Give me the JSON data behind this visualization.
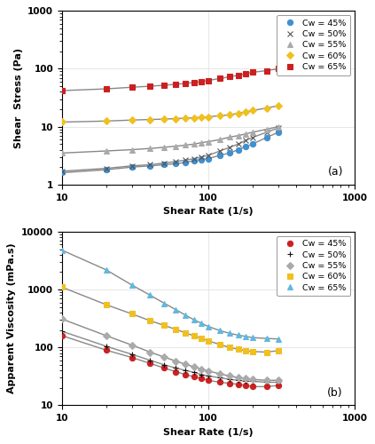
{
  "title_a": "(a)",
  "title_b": "(b)",
  "xlabel": "Shear Rate (1/s)",
  "ylabel_a": "Shear  Stress (Pa)",
  "ylabel_b": "Apparent Viscosity (mPa.s)",
  "xlim": [
    10,
    1000
  ],
  "ylim_a": [
    1,
    1000
  ],
  "ylim_b": [
    10,
    10000
  ],
  "legend_labels": [
    "Cw = 45%",
    "Cw = 50%",
    "Cw = 55%",
    "Cw = 60%",
    "Cw = 65%"
  ],
  "line_color": "#888888",
  "marker_colors_a": [
    "#4090d0",
    "#555555",
    "#aaaaaa",
    "#f0c020",
    "#cc2020"
  ],
  "marker_colors_b": [
    "#cc2020",
    "#111111",
    "#aaaaaa",
    "#f0c020",
    "#60b8e0"
  ],
  "markers_a": [
    "o",
    "x",
    "^",
    "D",
    "s"
  ],
  "markers_b": [
    "o",
    "+",
    "D",
    "s",
    "^"
  ],
  "plot_a": {
    "Cw45": {
      "x": [
        10,
        20,
        30,
        40,
        50,
        60,
        70,
        80,
        90,
        100,
        120,
        140,
        160,
        180,
        200,
        250,
        300
      ],
      "y": [
        1.6,
        1.8,
        2.0,
        2.1,
        2.2,
        2.3,
        2.4,
        2.6,
        2.7,
        2.8,
        3.2,
        3.5,
        4.0,
        4.5,
        5.0,
        6.5,
        8.0
      ]
    },
    "Cw50": {
      "x": [
        10,
        20,
        30,
        40,
        50,
        60,
        70,
        80,
        90,
        100,
        120,
        140,
        160,
        180,
        200,
        250,
        300
      ],
      "y": [
        1.7,
        1.9,
        2.1,
        2.2,
        2.35,
        2.5,
        2.65,
        2.8,
        3.0,
        3.2,
        3.8,
        4.4,
        5.0,
        5.8,
        6.5,
        8.0,
        9.5
      ]
    },
    "Cw55": {
      "x": [
        10,
        20,
        30,
        40,
        50,
        60,
        70,
        80,
        90,
        100,
        120,
        140,
        160,
        180,
        200,
        250,
        300
      ],
      "y": [
        3.5,
        3.8,
        4.0,
        4.2,
        4.4,
        4.6,
        4.8,
        5.0,
        5.3,
        5.5,
        6.0,
        6.6,
        7.0,
        7.5,
        8.0,
        9.0,
        10.0
      ]
    },
    "Cw60": {
      "x": [
        10,
        20,
        30,
        40,
        50,
        60,
        70,
        80,
        90,
        100,
        120,
        140,
        160,
        180,
        200,
        250,
        300
      ],
      "y": [
        12.0,
        12.5,
        13.0,
        13.3,
        13.5,
        13.8,
        14.0,
        14.3,
        14.5,
        14.8,
        15.5,
        16.0,
        17.0,
        18.0,
        19.0,
        21.0,
        23.0
      ]
    },
    "Cw65": {
      "x": [
        10,
        20,
        30,
        40,
        50,
        60,
        70,
        80,
        90,
        100,
        120,
        140,
        160,
        180,
        200,
        250,
        300
      ],
      "y": [
        42.0,
        45.0,
        48.0,
        50.0,
        52.0,
        54.0,
        56.0,
        58.0,
        60.0,
        63.0,
        68.0,
        73.0,
        77.0,
        82.0,
        87.0,
        93.0,
        100.0
      ]
    }
  },
  "plot_b": {
    "Cw45": {
      "x": [
        10,
        20,
        30,
        40,
        50,
        60,
        70,
        80,
        90,
        100,
        120,
        140,
        160,
        180,
        200,
        250,
        300
      ],
      "y": [
        160,
        90,
        67,
        53,
        44,
        38,
        34,
        31,
        29,
        27,
        25,
        24,
        23,
        22,
        21,
        21,
        22
      ]
    },
    "Cw50": {
      "x": [
        10,
        20,
        30,
        40,
        50,
        60,
        70,
        80,
        90,
        100,
        120,
        140,
        160,
        180,
        200,
        250,
        300
      ],
      "y": [
        190,
        105,
        76,
        60,
        50,
        44,
        40,
        37,
        34,
        32,
        30,
        28,
        27,
        26,
        26,
        25,
        25
      ]
    },
    "Cw55": {
      "x": [
        10,
        20,
        30,
        40,
        50,
        60,
        70,
        80,
        90,
        100,
        120,
        140,
        160,
        180,
        200,
        250,
        300
      ],
      "y": [
        310,
        160,
        110,
        83,
        68,
        58,
        51,
        46,
        42,
        39,
        35,
        32,
        30,
        29,
        28,
        27,
        27
      ]
    },
    "Cw60": {
      "x": [
        10,
        20,
        30,
        40,
        50,
        60,
        70,
        80,
        90,
        100,
        120,
        140,
        160,
        180,
        200,
        250,
        300
      ],
      "y": [
        1100,
        550,
        380,
        290,
        240,
        205,
        178,
        158,
        143,
        130,
        112,
        100,
        93,
        88,
        85,
        83,
        88
      ]
    },
    "Cw65": {
      "x": [
        10,
        20,
        30,
        40,
        50,
        60,
        70,
        80,
        90,
        100,
        120,
        140,
        160,
        180,
        200,
        250,
        300
      ],
      "y": [
        4800,
        2200,
        1200,
        800,
        580,
        450,
        360,
        300,
        260,
        230,
        195,
        175,
        163,
        155,
        148,
        143,
        140
      ]
    }
  },
  "markersize": 4.5,
  "linewidth": 1.0,
  "background_color": "#ffffff",
  "grid_color": "#dddddd",
  "figsize": [
    4.23,
    5.0
  ],
  "dpi": 100
}
